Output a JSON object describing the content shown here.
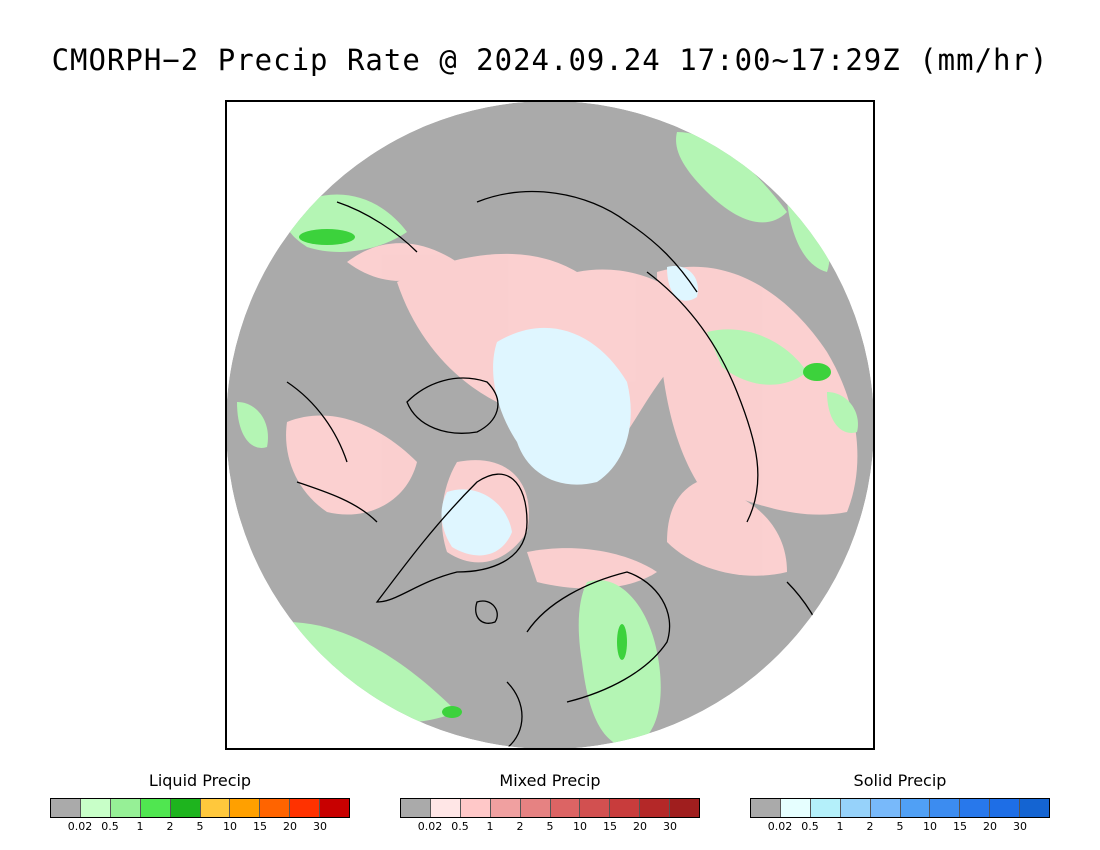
{
  "title": "CMORPH−2 Precip Rate @ 2024.09.24 17:00~17:29Z (mm/hr)",
  "map": {
    "projection": "north polar stereographic",
    "colors": {
      "background_no_precip": "#aaaaaa",
      "ocean_outside": "#ffffff",
      "coastline": "#000000"
    }
  },
  "legends": [
    {
      "title": "Liquid Precip",
      "colors": [
        "#aaaaaa",
        "#c8ffc8",
        "#96f096",
        "#50e650",
        "#1eb41e",
        "#ffc83c",
        "#ffa000",
        "#ff6400",
        "#ff3200",
        "#c80000"
      ],
      "ticks": [
        "0.02",
        "0.5",
        "1",
        "2",
        "5",
        "10",
        "15",
        "20",
        "30"
      ]
    },
    {
      "title": "Mixed Precip",
      "colors": [
        "#aaaaaa",
        "#ffe6e6",
        "#ffc8c8",
        "#f0a0a0",
        "#e68282",
        "#dc6464",
        "#d25050",
        "#c83c3c",
        "#b42828",
        "#a01e1e"
      ],
      "ticks": [
        "0.02",
        "0.5",
        "1",
        "2",
        "5",
        "10",
        "15",
        "20",
        "30"
      ]
    },
    {
      "title": "Solid Precip",
      "colors": [
        "#aaaaaa",
        "#e6ffff",
        "#b4f0fa",
        "#96d2fa",
        "#78b9fa",
        "#50a0f5",
        "#3c8cf0",
        "#2878eb",
        "#1e6ee6",
        "#1464d2"
      ],
      "ticks": [
        "0.02",
        "0.5",
        "1",
        "2",
        "5",
        "10",
        "15",
        "20",
        "30"
      ]
    }
  ]
}
